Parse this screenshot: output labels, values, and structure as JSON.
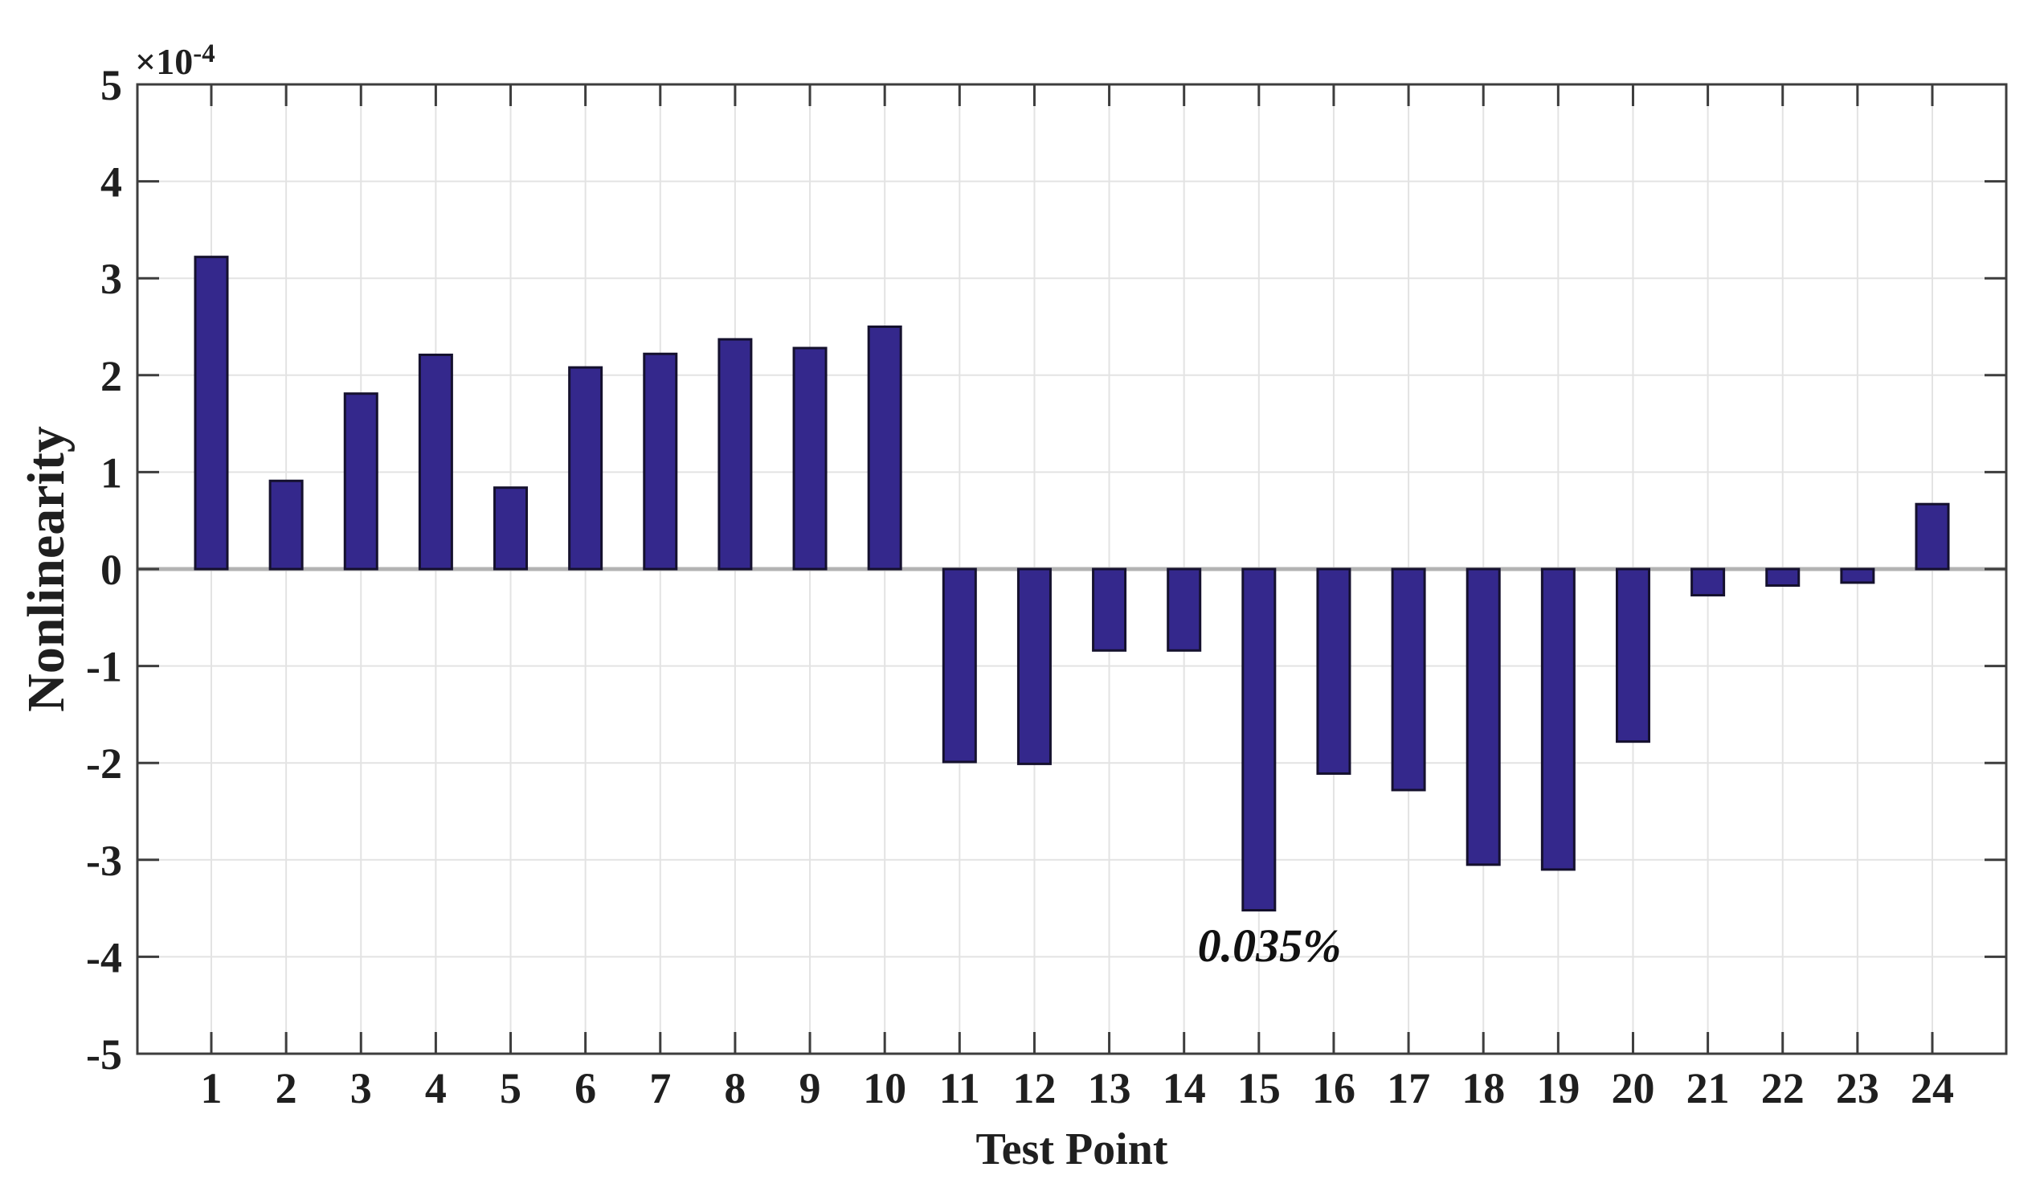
{
  "chart_data": {
    "type": "bar",
    "title": "",
    "xlabel": "Test Point",
    "ylabel": "Nonlinearity",
    "y_exponent_label": {
      "multiplier": "×10",
      "exponent": "-4"
    },
    "unit_scale": "1e-4",
    "categories": [
      "1",
      "2",
      "3",
      "4",
      "5",
      "6",
      "7",
      "8",
      "9",
      "10",
      "11",
      "12",
      "13",
      "14",
      "15",
      "16",
      "17",
      "18",
      "19",
      "20",
      "21",
      "22",
      "23",
      "24"
    ],
    "values_e4": [
      3.22,
      0.91,
      1.81,
      2.21,
      0.84,
      2.08,
      2.22,
      2.37,
      2.28,
      2.5,
      -1.99,
      -2.01,
      -0.84,
      -0.84,
      -3.52,
      -2.11,
      -2.28,
      -3.05,
      -3.1,
      -1.78,
      -0.27,
      -0.17,
      -0.14,
      0.67
    ],
    "ylim": [
      -5,
      5
    ],
    "ytick_step": 1,
    "ytick_labels": [
      "5",
      "4",
      "3",
      "2",
      "1",
      "0",
      "-1",
      "-2",
      "-3",
      "-4",
      "-5"
    ],
    "grid": true,
    "legend": "none",
    "annotation": {
      "text": "0.035%",
      "category": 15
    },
    "colors": {
      "bar_fill": "#34288C",
      "bar_edge": "#15112E",
      "grid_line": "#e3e3e3",
      "zero_line": "#b3b3b3",
      "axis_box": "#3d3d3d",
      "text": "#1f1f1f",
      "background": "#ffffff"
    }
  }
}
